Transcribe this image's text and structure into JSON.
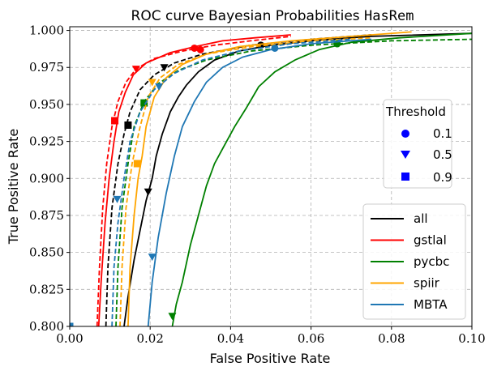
{
  "chart_data": {
    "type": "line",
    "title": "ROC curve Bayesian Probabilities ",
    "title_mono": "HasRem",
    "xlabel": "False Positive Rate",
    "ylabel": "True Positive Rate",
    "xlim": [
      0.0,
      0.1
    ],
    "ylim": [
      0.8,
      1.0025
    ],
    "xticks": [
      0.0,
      0.02,
      0.04,
      0.06,
      0.08,
      0.1
    ],
    "xtick_labels": [
      "0.00",
      "0.02",
      "0.04",
      "0.06",
      "0.08",
      "0.10"
    ],
    "yticks": [
      0.8,
      0.825,
      0.85,
      0.875,
      0.9,
      0.925,
      0.95,
      0.975,
      1.0
    ],
    "ytick_labels": [
      "0.800",
      "0.825",
      "0.850",
      "0.875",
      "0.900",
      "0.925",
      "0.950",
      "0.975",
      "1.000"
    ],
    "grid": true,
    "colors": {
      "all": "#000000",
      "gstlal": "#ff0000",
      "pycbc": "#008000",
      "spiir": "#ffa500",
      "MBTA": "#1f77b4",
      "threshold_marker": "#0000ff"
    },
    "series_legend": {
      "placement": "lower-right",
      "entries": [
        "all",
        "gstlal",
        "pycbc",
        "spiir",
        "MBTA"
      ]
    },
    "threshold_legend": {
      "placement": "center-right",
      "title": "Threshold",
      "entries": [
        {
          "label": "0.1",
          "marker": "circle"
        },
        {
          "label": "0.5",
          "marker": "triangle-down"
        },
        {
          "label": "0.9",
          "marker": "square"
        }
      ]
    },
    "series": [
      {
        "name": "all",
        "color": "#000000",
        "style": "solid",
        "points": [
          [
            0.0135,
            0.8
          ],
          [
            0.0145,
            0.82
          ],
          [
            0.016,
            0.845
          ],
          [
            0.0175,
            0.865
          ],
          [
            0.019,
            0.885
          ],
          [
            0.0205,
            0.9
          ],
          [
            0.0215,
            0.915
          ],
          [
            0.023,
            0.93
          ],
          [
            0.025,
            0.945
          ],
          [
            0.027,
            0.955
          ],
          [
            0.029,
            0.963
          ],
          [
            0.032,
            0.972
          ],
          [
            0.036,
            0.98
          ],
          [
            0.042,
            0.986
          ],
          [
            0.05,
            0.99
          ],
          [
            0.06,
            0.993
          ],
          [
            0.075,
            0.996
          ],
          [
            0.1,
            0.998
          ]
        ],
        "markers": [
          {
            "t": 0.1,
            "x": 0.0475,
            "y": 0.99
          },
          {
            "t": 0.5,
            "x": 0.0195,
            "y": 0.891
          },
          {
            "t": 0.9,
            "x": 0.0
          }
        ]
      },
      {
        "name": "all",
        "color": "#000000",
        "style": "dashed",
        "points": [
          [
            0.009,
            0.8
          ],
          [
            0.0095,
            0.84
          ],
          [
            0.0105,
            0.88
          ],
          [
            0.012,
            0.91
          ],
          [
            0.0135,
            0.93
          ],
          [
            0.015,
            0.945
          ],
          [
            0.0175,
            0.96
          ],
          [
            0.021,
            0.97
          ],
          [
            0.026,
            0.978
          ],
          [
            0.033,
            0.984
          ],
          [
            0.045,
            0.99
          ],
          [
            0.06,
            0.994
          ],
          [
            0.075,
            0.997
          ]
        ],
        "markers": [
          {
            "t": 0.5,
            "x": 0.0235,
            "y": 0.975
          },
          {
            "t": 0.9,
            "x": 0.0145,
            "y": 0.936
          }
        ]
      },
      {
        "name": "gstlal",
        "color": "#ff0000",
        "style": "solid",
        "points": [
          [
            0.0072,
            0.8
          ],
          [
            0.0078,
            0.83
          ],
          [
            0.0088,
            0.87
          ],
          [
            0.0098,
            0.9
          ],
          [
            0.011,
            0.925
          ],
          [
            0.0122,
            0.945
          ],
          [
            0.0138,
            0.958
          ],
          [
            0.0158,
            0.97
          ],
          [
            0.019,
            0.978
          ],
          [
            0.025,
            0.985
          ],
          [
            0.031,
            0.989
          ],
          [
            0.038,
            0.993
          ],
          [
            0.046,
            0.995
          ],
          [
            0.055,
            0.997
          ]
        ],
        "markers": [
          {
            "t": 0.1,
            "x": 0.031,
            "y": 0.988
          },
          {
            "t": 0.9,
            "x": 0.0112,
            "y": 0.939
          }
        ]
      },
      {
        "name": "gstlal",
        "color": "#ff0000",
        "style": "dashed",
        "points": [
          [
            0.0068,
            0.8
          ],
          [
            0.0074,
            0.84
          ],
          [
            0.0082,
            0.88
          ],
          [
            0.0092,
            0.91
          ],
          [
            0.0105,
            0.935
          ],
          [
            0.012,
            0.952
          ],
          [
            0.014,
            0.965
          ],
          [
            0.0165,
            0.974
          ],
          [
            0.021,
            0.981
          ],
          [
            0.028,
            0.986
          ],
          [
            0.036,
            0.99
          ],
          [
            0.045,
            0.993
          ],
          [
            0.055,
            0.996
          ]
        ],
        "markers": [
          {
            "t": 0.1,
            "x": 0.0325,
            "y": 0.987
          },
          {
            "t": 0.5,
            "x": 0.0165,
            "y": 0.974
          }
        ]
      },
      {
        "name": "pycbc",
        "color": "#008000",
        "style": "solid",
        "points": [
          [
            0.0255,
            0.8
          ],
          [
            0.0265,
            0.815
          ],
          [
            0.028,
            0.83
          ],
          [
            0.03,
            0.855
          ],
          [
            0.032,
            0.875
          ],
          [
            0.034,
            0.895
          ],
          [
            0.036,
            0.91
          ],
          [
            0.038,
            0.92
          ],
          [
            0.041,
            0.935
          ],
          [
            0.044,
            0.948
          ],
          [
            0.047,
            0.962
          ],
          [
            0.051,
            0.972
          ],
          [
            0.056,
            0.98
          ],
          [
            0.062,
            0.987
          ],
          [
            0.07,
            0.992
          ],
          [
            0.082,
            0.995
          ],
          [
            0.1,
            0.998
          ]
        ],
        "markers": [
          {
            "t": 0.1,
            "x": 0.0665,
            "y": 0.991
          },
          {
            "t": 0.5,
            "x": 0.0255,
            "y": 0.807
          },
          {
            "t": 0.9,
            "x": 0.0
          }
        ]
      },
      {
        "name": "pycbc",
        "color": "#008000",
        "style": "dashed",
        "points": [
          [
            0.0115,
            0.8
          ],
          [
            0.012,
            0.84
          ],
          [
            0.013,
            0.88
          ],
          [
            0.0145,
            0.91
          ],
          [
            0.016,
            0.935
          ],
          [
            0.0185,
            0.952
          ],
          [
            0.022,
            0.964
          ],
          [
            0.027,
            0.973
          ],
          [
            0.034,
            0.98
          ],
          [
            0.045,
            0.986
          ],
          [
            0.06,
            0.99
          ],
          [
            0.08,
            0.993
          ],
          [
            0.1,
            0.994
          ]
        ],
        "markers": [
          {
            "t": 0.9,
            "x": 0.0185,
            "y": 0.951
          }
        ]
      },
      {
        "name": "spiir",
        "color": "#ffa500",
        "style": "solid",
        "points": [
          [
            0.0145,
            0.8
          ],
          [
            0.015,
            0.84
          ],
          [
            0.016,
            0.875
          ],
          [
            0.017,
            0.9
          ],
          [
            0.018,
            0.915
          ],
          [
            0.019,
            0.935
          ],
          [
            0.021,
            0.955
          ],
          [
            0.024,
            0.968
          ],
          [
            0.028,
            0.977
          ],
          [
            0.034,
            0.984
          ],
          [
            0.042,
            0.989
          ],
          [
            0.055,
            0.993
          ],
          [
            0.07,
            0.996
          ],
          [
            0.085,
            0.999
          ]
        ],
        "markers": [
          {
            "t": 0.9,
            "x": 0.0168,
            "y": 0.91
          }
        ]
      },
      {
        "name": "spiir",
        "color": "#ffa500",
        "style": "dashed",
        "points": [
          [
            0.0125,
            0.8
          ],
          [
            0.013,
            0.84
          ],
          [
            0.014,
            0.88
          ],
          [
            0.0155,
            0.91
          ],
          [
            0.0175,
            0.935
          ],
          [
            0.0195,
            0.955
          ],
          [
            0.0225,
            0.968
          ],
          [
            0.027,
            0.977
          ],
          [
            0.034,
            0.984
          ],
          [
            0.045,
            0.989
          ],
          [
            0.06,
            0.993
          ],
          [
            0.075,
            0.995
          ]
        ],
        "markers": [
          {
            "t": 0.5,
            "x": 0.0205,
            "y": 0.965
          }
        ]
      },
      {
        "name": "MBTA",
        "color": "#1f77b4",
        "style": "solid",
        "points": [
          [
            0.0195,
            0.8
          ],
          [
            0.0205,
            0.83
          ],
          [
            0.022,
            0.86
          ],
          [
            0.024,
            0.89
          ],
          [
            0.026,
            0.915
          ],
          [
            0.028,
            0.935
          ],
          [
            0.031,
            0.952
          ],
          [
            0.034,
            0.965
          ],
          [
            0.038,
            0.975
          ],
          [
            0.043,
            0.982
          ],
          [
            0.05,
            0.987
          ],
          [
            0.06,
            0.991
          ],
          [
            0.075,
            0.994
          ]
        ],
        "markers": [
          {
            "t": 0.1,
            "x": 0.051,
            "y": 0.988
          },
          {
            "t": 0.5,
            "x": 0.0205,
            "y": 0.847
          }
        ]
      },
      {
        "name": "MBTA",
        "color": "#1f77b4",
        "style": "dashed",
        "points": [
          [
            0.0105,
            0.8
          ],
          [
            0.011,
            0.84
          ],
          [
            0.012,
            0.87
          ],
          [
            0.0135,
            0.9
          ],
          [
            0.015,
            0.925
          ],
          [
            0.0175,
            0.945
          ],
          [
            0.021,
            0.96
          ],
          [
            0.026,
            0.971
          ],
          [
            0.033,
            0.98
          ],
          [
            0.042,
            0.986
          ],
          [
            0.055,
            0.991
          ],
          [
            0.07,
            0.994
          ]
        ],
        "markers": [
          {
            "t": 0.5,
            "x": 0.0118,
            "y": 0.886
          },
          {
            "t": 0.5,
            "x": 0.0222,
            "y": 0.962
          },
          {
            "t": 0.9,
            "x": 0.0
          }
        ]
      }
    ]
  }
}
